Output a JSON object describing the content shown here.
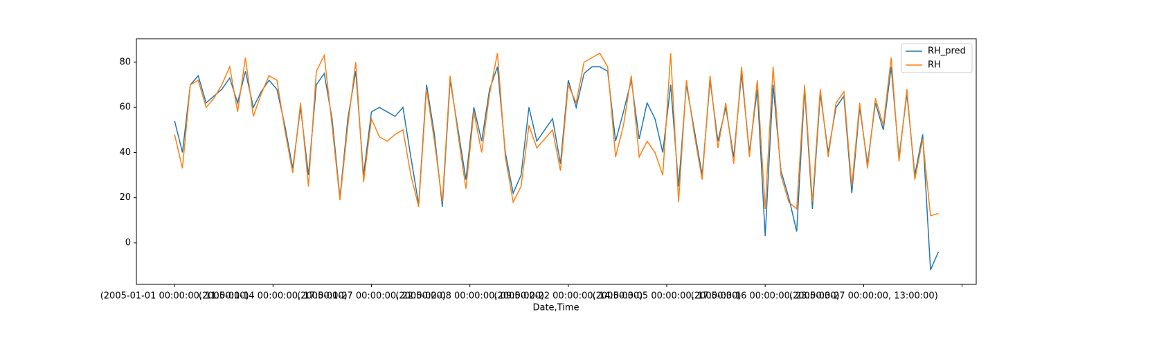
{
  "chart_data": {
    "type": "line",
    "x_label": "Date,Time",
    "x": [
      0,
      20,
      40,
      60,
      80,
      100,
      120,
      140,
      160,
      180,
      200,
      220,
      240,
      260,
      280,
      300,
      320,
      340,
      360,
      380,
      400,
      420,
      440,
      460,
      480,
      500,
      520,
      540,
      560,
      580,
      600,
      620,
      640,
      660,
      680,
      700,
      720,
      740,
      760,
      780,
      800,
      820,
      840,
      860,
      880,
      900,
      920,
      940,
      960,
      980,
      1000,
      1020,
      1040,
      1060,
      1080,
      1100,
      1120,
      1140,
      1160,
      1180,
      1200,
      1220,
      1240,
      1260,
      1280,
      1300,
      1320,
      1340,
      1360,
      1380,
      1400,
      1420,
      1440,
      1460,
      1480,
      1500,
      1520,
      1540,
      1560,
      1580,
      1600,
      1620,
      1640,
      1660,
      1680,
      1700,
      1720,
      1740,
      1760,
      1780,
      1800,
      1820,
      1840,
      1860,
      1880,
      1900,
      1920,
      1940
    ],
    "series": [
      {
        "name": "RH_pred",
        "color": "#1f77b4",
        "values": [
          54,
          40,
          70,
          74,
          62,
          65,
          68,
          73,
          62,
          76,
          60,
          67,
          72,
          68,
          52,
          33,
          60,
          30,
          70,
          75,
          55,
          20,
          55,
          76,
          30,
          58,
          60,
          58,
          56,
          60,
          38,
          17,
          70,
          48,
          16,
          72,
          50,
          28,
          60,
          45,
          68,
          78,
          40,
          22,
          30,
          60,
          45,
          50,
          55,
          35,
          72,
          60,
          75,
          78,
          78,
          76,
          45,
          58,
          72,
          46,
          62,
          55,
          40,
          70,
          25,
          70,
          50,
          30,
          72,
          45,
          60,
          38,
          75,
          40,
          68,
          3,
          70,
          32,
          20,
          5,
          68,
          15,
          66,
          40,
          60,
          65,
          22,
          60,
          35,
          62,
          50,
          78,
          38,
          66,
          30,
          48,
          -12,
          -4
        ]
      },
      {
        "name": "RH",
        "color": "#ff7f0e",
        "values": [
          48,
          33,
          70,
          72,
          60,
          64,
          70,
          78,
          58,
          82,
          56,
          66,
          74,
          72,
          50,
          31,
          62,
          25,
          76,
          83,
          52,
          19,
          52,
          80,
          27,
          55,
          47,
          45,
          48,
          50,
          30,
          16,
          68,
          45,
          18,
          74,
          48,
          24,
          58,
          40,
          66,
          84,
          38,
          18,
          25,
          52,
          42,
          46,
          50,
          32,
          70,
          62,
          80,
          82,
          84,
          78,
          38,
          52,
          74,
          38,
          45,
          40,
          30,
          84,
          18,
          72,
          48,
          28,
          74,
          42,
          62,
          35,
          78,
          38,
          72,
          15,
          78,
          30,
          18,
          15,
          70,
          18,
          68,
          38,
          62,
          67,
          25,
          62,
          33,
          64,
          52,
          82,
          36,
          68,
          28,
          46,
          12,
          13
        ]
      }
    ],
    "xlim": [
      -97,
      2036
    ],
    "xticks": [
      {
        "value": 0,
        "label": "(2005-01-01 00:00:00, 11:00:00)"
      },
      {
        "value": 250,
        "label": "(2005-01-14 00:00:00, 17:00:00)"
      },
      {
        "value": 500,
        "label": "(2005-01-27 00:00:00, 22:00:00)"
      },
      {
        "value": 750,
        "label": "(2005-02-08 00:00:00, 09:00:00)"
      },
      {
        "value": 1000,
        "label": "(2005-02-22 00:00:00, 14:00:00)"
      },
      {
        "value": 1250,
        "label": "(2005-03-05 00:00:00, 17:00:00)"
      },
      {
        "value": 1500,
        "label": "(2005-03-16 00:00:00, 23:00:00)"
      },
      {
        "value": 1750,
        "label": "(2005-03-27 00:00:00, 13:00:00)"
      },
      {
        "value": 2000,
        "label": null
      }
    ],
    "ylim": [
      -18.4,
      90.4
    ],
    "yticks": [
      0,
      20,
      40,
      60,
      80
    ],
    "legend": "upper right"
  }
}
